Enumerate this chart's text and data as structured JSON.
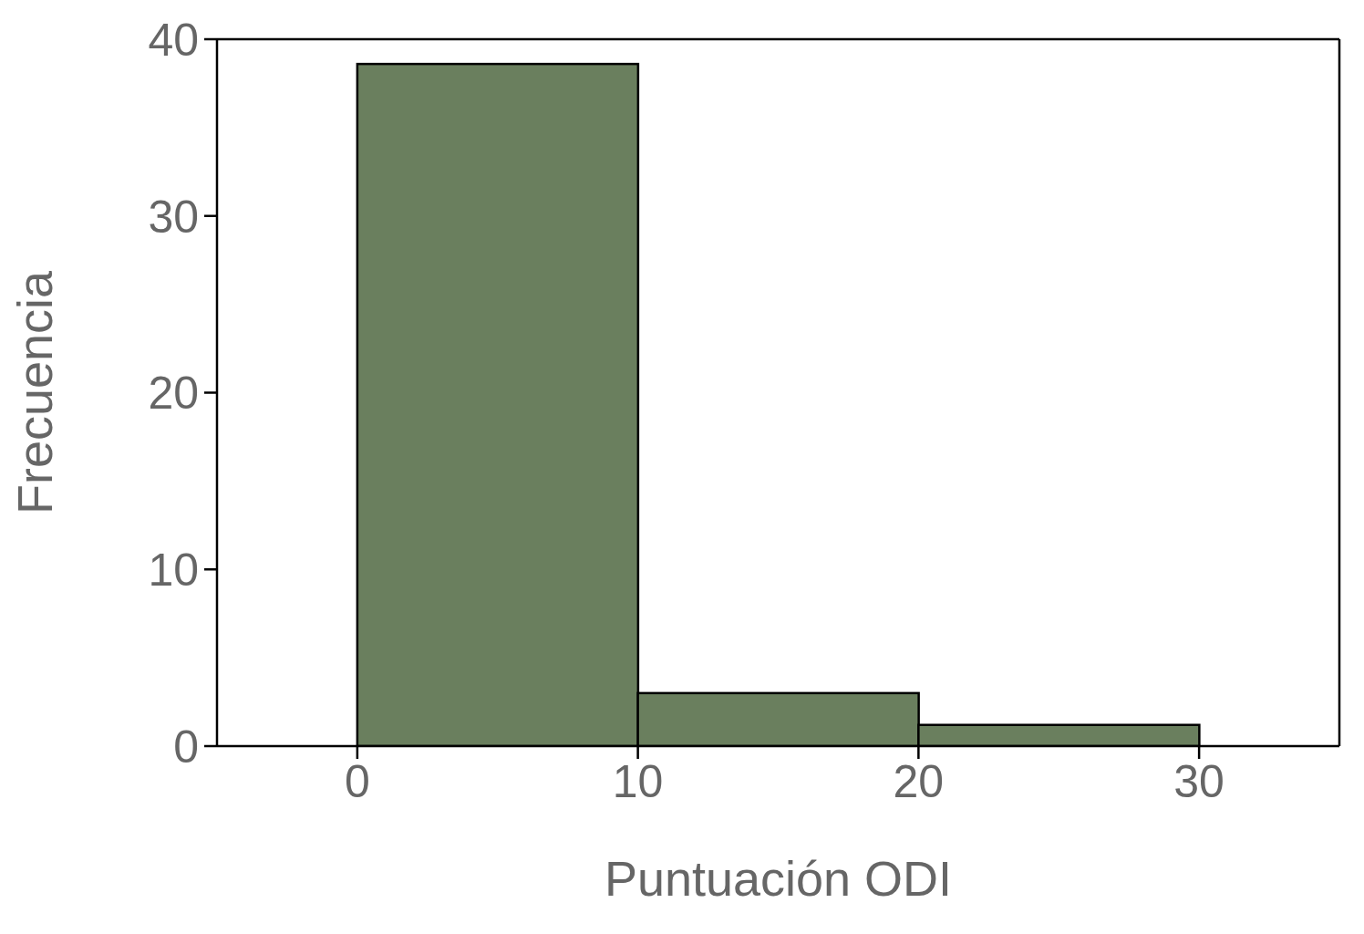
{
  "chart_data": {
    "type": "histogram",
    "xlabel": "Puntuación ODI",
    "ylabel": "Frecuencia",
    "bins": [
      0,
      10,
      20,
      30
    ],
    "values": [
      38.6,
      3,
      1.2
    ],
    "color": "#6a7f5e",
    "xlim": [
      -5,
      35
    ],
    "xticks": [
      0,
      10,
      20,
      30
    ],
    "ylim": [
      0,
      40
    ],
    "yticks": [
      0,
      10,
      20,
      30,
      40
    ],
    "grid": false
  }
}
